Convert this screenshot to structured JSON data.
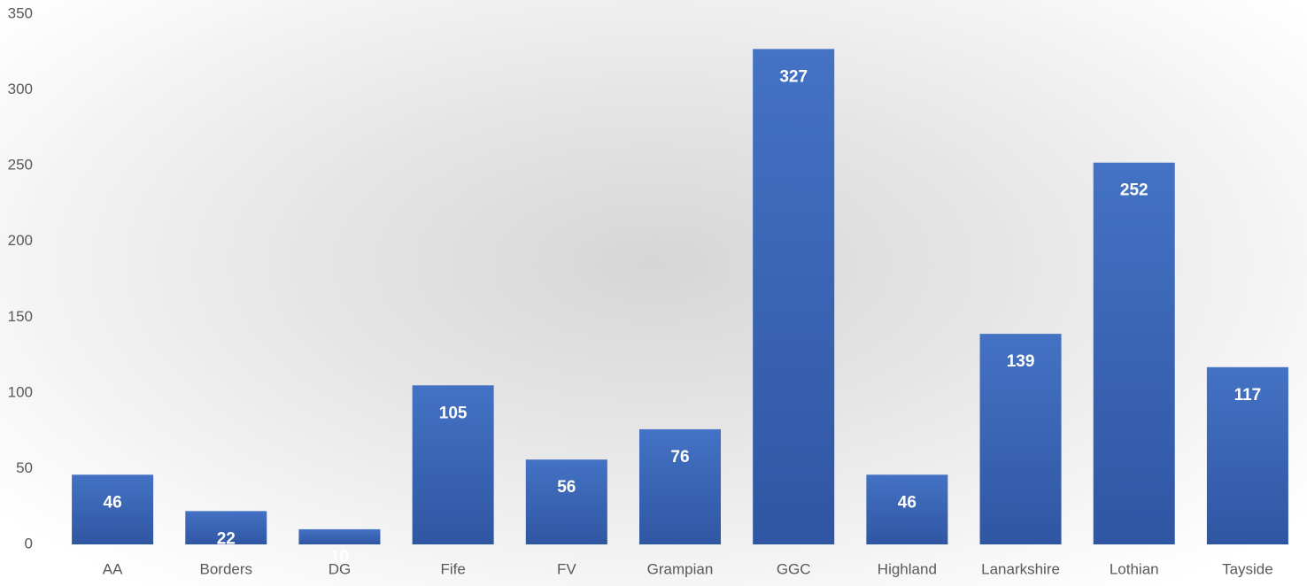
{
  "chart_data": {
    "type": "bar",
    "categories": [
      "AA",
      "Borders",
      "DG",
      "Fife",
      "FV",
      "Grampian",
      "GGC",
      "Highland",
      "Lanarkshire",
      "Lothian",
      "Tayside"
    ],
    "values": [
      46,
      22,
      10,
      105,
      56,
      76,
      327,
      46,
      139,
      252,
      117
    ],
    "color": "#4472c4",
    "ylim": [
      0,
      350
    ],
    "yticks": [
      0,
      50,
      100,
      150,
      200,
      250,
      300,
      350
    ],
    "grid": false
  }
}
